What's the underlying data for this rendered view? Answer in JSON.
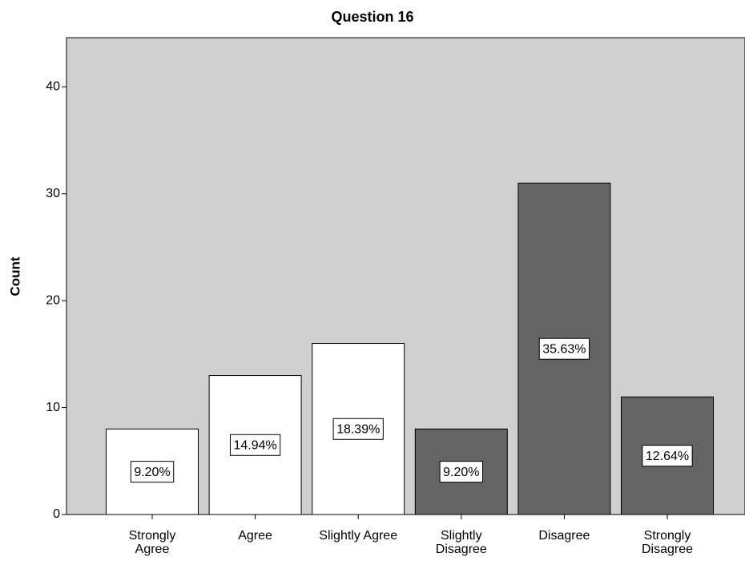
{
  "chart_data": {
    "type": "bar",
    "title": "Question 16",
    "y_label": "Count",
    "categories": [
      "Strongly\nAgree",
      "Agree",
      "Slightly Agree",
      "Slightly\nDisagree",
      "Disagree",
      "Strongly\nDisagree"
    ],
    "values": [
      8,
      13,
      16,
      8,
      31,
      11
    ],
    "data_labels": [
      "9.20%",
      "14.94%",
      "18.39%",
      "9.20%",
      "35.63%",
      "12.64%"
    ],
    "colors": [
      "#ffffff",
      "#ffffff",
      "#ffffff",
      "#646464",
      "#646464",
      "#646464"
    ],
    "ylim": [
      0,
      44.6
    ],
    "yticks": [
      0,
      10,
      20,
      30,
      40
    ]
  }
}
